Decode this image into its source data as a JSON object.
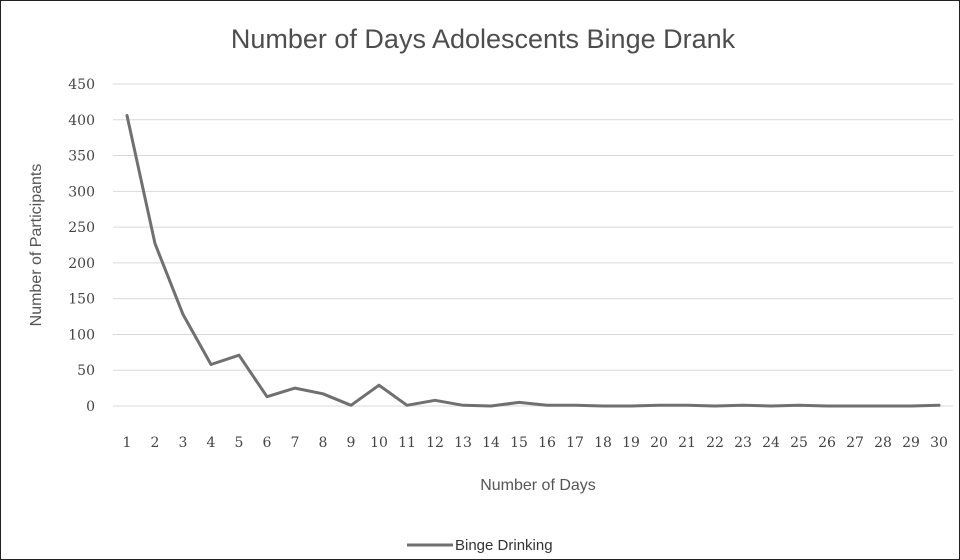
{
  "chart_data": {
    "type": "line",
    "title": "Number of Days Adolescents Binge Drank",
    "xlabel": "Number of Days",
    "ylabel": "Number of Participants",
    "x": [
      1,
      2,
      3,
      4,
      5,
      6,
      7,
      8,
      9,
      10,
      11,
      12,
      13,
      14,
      15,
      16,
      17,
      18,
      19,
      20,
      21,
      22,
      23,
      24,
      25,
      26,
      27,
      28,
      29,
      30
    ],
    "y_ticks": [
      0,
      50,
      100,
      150,
      200,
      250,
      300,
      350,
      400,
      450
    ],
    "ylim": [
      0,
      450
    ],
    "grid": true,
    "legend_position": "bottom",
    "series": [
      {
        "name": "Binge Drinking",
        "color": "#707070",
        "values": [
          406,
          227,
          128,
          58,
          71,
          13,
          25,
          17,
          1,
          29,
          1,
          8,
          1,
          0,
          5,
          1,
          1,
          0,
          0,
          1,
          1,
          0,
          1,
          0,
          1,
          0,
          0,
          0,
          0,
          1
        ]
      }
    ]
  }
}
